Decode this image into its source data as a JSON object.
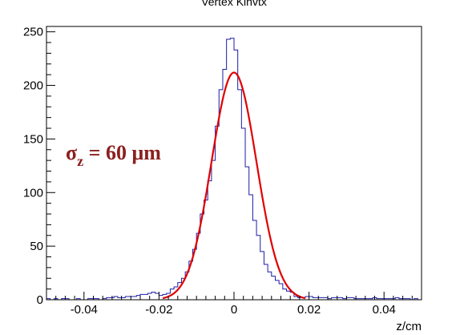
{
  "chart_data": {
    "type": "histogram",
    "title": "Vertex Kinvtx",
    "xlabel": "z/cm",
    "ylabel": "",
    "xlim": [
      -0.05,
      0.05
    ],
    "ylim": [
      0,
      255
    ],
    "grid": false,
    "x_ticks": [
      -0.04,
      -0.02,
      0,
      0.02,
      0.04
    ],
    "x_tick_labels": [
      "-0.04",
      "-0.02",
      "0",
      "0.02",
      "0.04"
    ],
    "y_ticks": [
      0,
      50,
      100,
      150,
      200,
      250
    ],
    "y_tick_labels": [
      "0",
      "50",
      "100",
      "150",
      "200",
      "250"
    ],
    "annotation": {
      "text": "σ",
      "subscript": "z",
      "suffix": " = 60 μm"
    },
    "series": [
      {
        "kind": "histogram",
        "color": "#1c1ca8",
        "bin_width": 0.001,
        "bin_edges_start": -0.05,
        "counts": [
          1,
          0,
          1,
          0,
          1,
          1,
          0,
          0,
          1,
          0,
          0,
          1,
          1,
          1,
          0,
          1,
          2,
          2,
          3,
          2,
          2,
          3,
          3,
          3,
          4,
          5,
          5,
          6,
          7,
          6,
          4,
          5,
          6,
          10,
          12,
          16,
          20,
          26,
          36,
          47,
          62,
          80,
          93,
          111,
          130,
          162,
          196,
          215,
          243,
          244,
          233,
          196,
          160,
          124,
          98,
          74,
          60,
          45,
          33,
          26,
          22,
          18,
          15,
          10,
          8,
          7,
          3,
          2,
          2,
          3,
          3,
          2,
          2,
          2,
          2,
          1,
          2,
          2,
          2,
          1,
          2,
          2,
          1,
          1,
          1,
          1,
          1,
          2,
          1,
          1,
          1,
          1,
          1,
          2,
          1,
          1,
          1,
          0,
          1,
          0
        ]
      },
      {
        "kind": "gaussian-fit",
        "color": "#e00000",
        "amplitude": 212,
        "mean": 0,
        "sigma": 0.006,
        "x_range": [
          -0.019,
          0.019
        ]
      }
    ]
  }
}
